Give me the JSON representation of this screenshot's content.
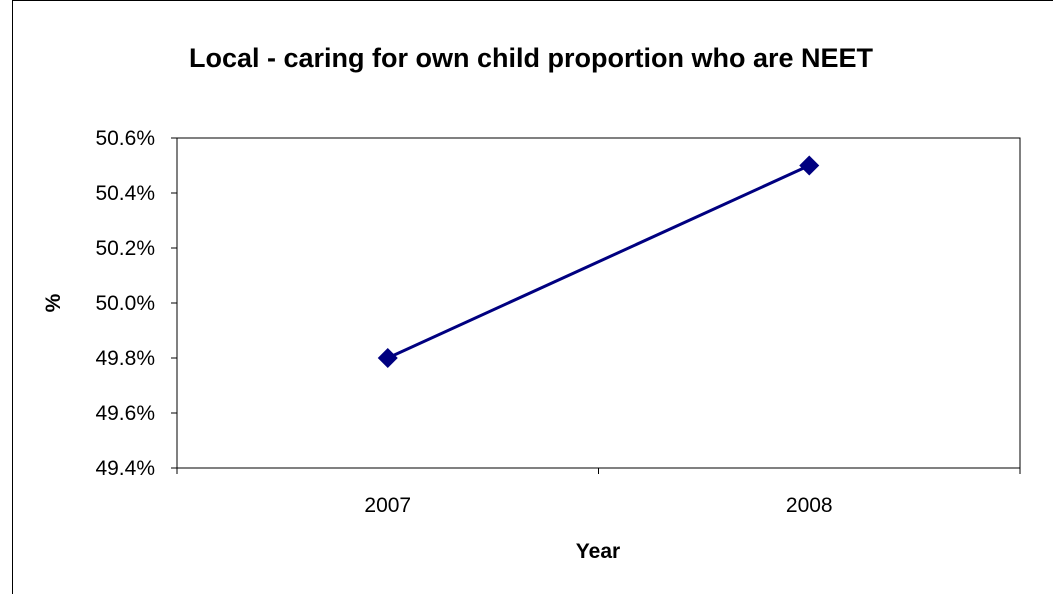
{
  "chart_data": {
    "type": "line",
    "title": "Local - caring for own child proportion who are NEET",
    "xlabel": "Year",
    "ylabel": "%",
    "categories": [
      "2007",
      "2008"
    ],
    "series": [
      {
        "values": [
          49.8,
          50.5
        ],
        "color": "#000080",
        "marker": "diamond"
      }
    ],
    "ylim": [
      49.4,
      50.6
    ],
    "yticks": [
      50.6,
      50.4,
      50.2,
      50.0,
      49.8,
      49.6,
      49.4
    ],
    "ytick_labels": [
      "50.6%",
      "50.4%",
      "50.2%",
      "50.0%",
      "49.8%",
      "49.6%",
      "49.4%"
    ],
    "grid": false,
    "legend": "none"
  }
}
